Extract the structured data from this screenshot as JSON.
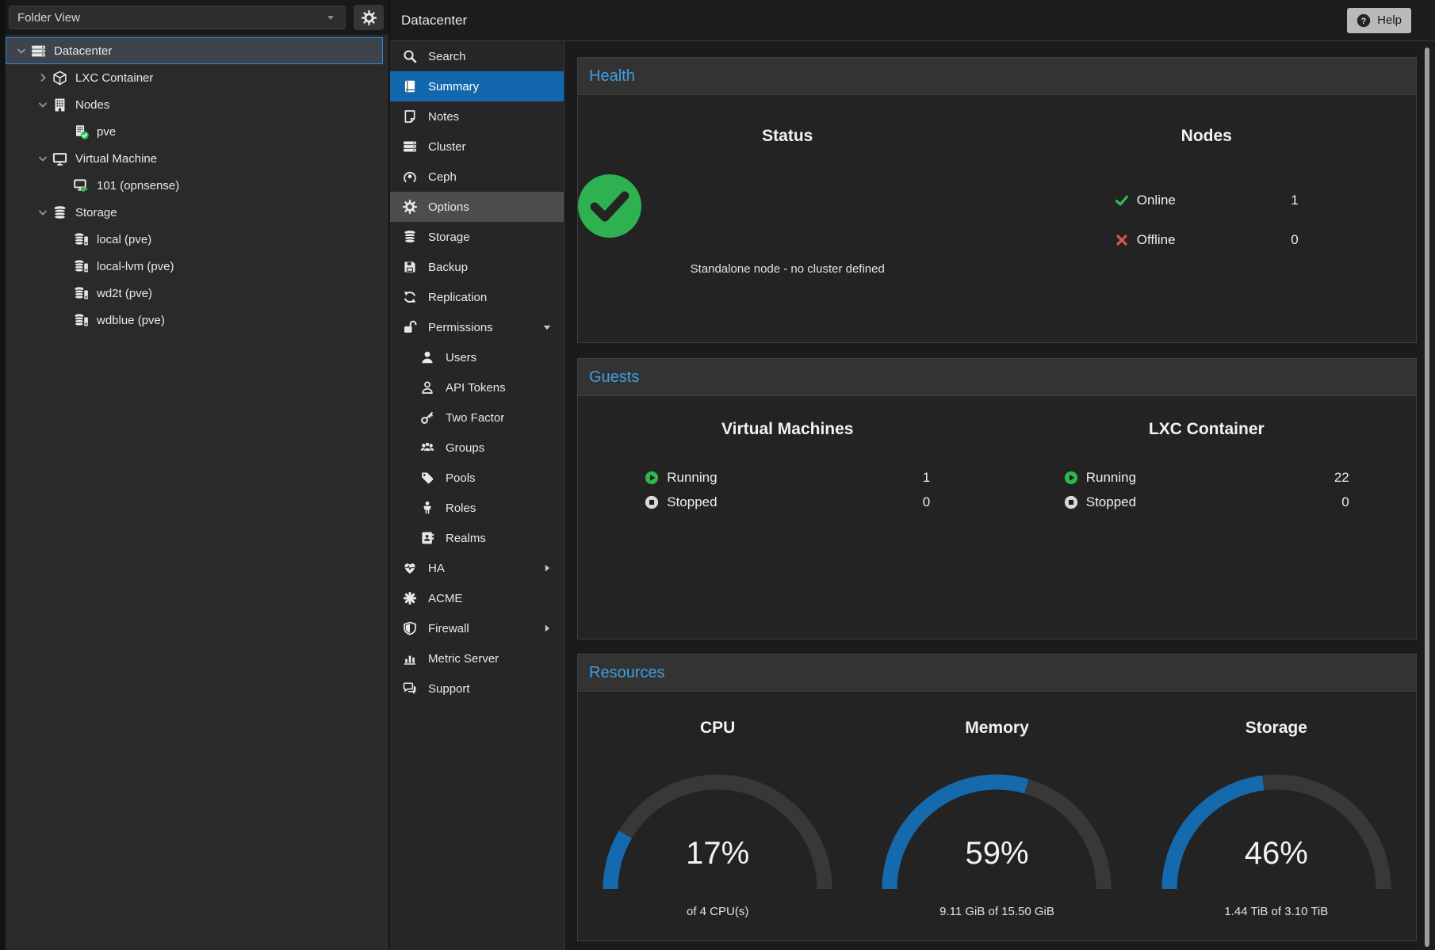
{
  "window": {
    "help_label": "Help"
  },
  "colors": {
    "selection_blue": "#1368ad",
    "panel_title_blue": "#3f9ee0",
    "success_green": "#2eb150",
    "error_red": "#e5534f",
    "gauge_blue": "#1569ad",
    "gauge_track": "#383838"
  },
  "sidebar": {
    "view_selector": "Folder View",
    "tree": [
      {
        "label": "Datacenter",
        "icon": "server",
        "level": 0,
        "expander": "down",
        "selected": true
      },
      {
        "label": "LXC Container",
        "icon": "cube",
        "level": 1,
        "expander": "right"
      },
      {
        "label": "Nodes",
        "icon": "building",
        "level": 1,
        "expander": "down"
      },
      {
        "label": "pve",
        "icon": "building-online",
        "level": 2,
        "expander": "none"
      },
      {
        "label": "Virtual Machine",
        "icon": "desktop",
        "level": 1,
        "expander": "down"
      },
      {
        "label": "101 (opnsense)",
        "icon": "desktop-running",
        "level": 2,
        "expander": "none"
      },
      {
        "label": "Storage",
        "icon": "database",
        "level": 1,
        "expander": "down"
      },
      {
        "label": "local (pve)",
        "icon": "database-drive",
        "level": 2,
        "expander": "none"
      },
      {
        "label": "local-lvm (pve)",
        "icon": "database-drive",
        "level": 2,
        "expander": "none"
      },
      {
        "label": "wd2t (pve)",
        "icon": "database-drive",
        "level": 2,
        "expander": "none"
      },
      {
        "label": "wdblue (pve)",
        "icon": "database-drive",
        "level": 2,
        "expander": "none"
      }
    ]
  },
  "menu": {
    "items": [
      {
        "label": "Search",
        "icon": "search"
      },
      {
        "label": "Summary",
        "icon": "book",
        "selected": true
      },
      {
        "label": "Notes",
        "icon": "note"
      },
      {
        "label": "Cluster",
        "icon": "server"
      },
      {
        "label": "Ceph",
        "icon": "ceph"
      },
      {
        "label": "Options",
        "icon": "gear",
        "hover": true
      },
      {
        "label": "Storage",
        "icon": "database"
      },
      {
        "label": "Backup",
        "icon": "floppy"
      },
      {
        "label": "Replication",
        "icon": "replication"
      },
      {
        "label": "Permissions",
        "icon": "unlock",
        "caret": "down"
      },
      {
        "label": "Users",
        "icon": "user",
        "sub": true
      },
      {
        "label": "API Tokens",
        "icon": "user-outline",
        "sub": true
      },
      {
        "label": "Two Factor",
        "icon": "key",
        "sub": true
      },
      {
        "label": "Groups",
        "icon": "users",
        "sub": true
      },
      {
        "label": "Pools",
        "icon": "tag",
        "sub": true
      },
      {
        "label": "Roles",
        "icon": "person",
        "sub": true
      },
      {
        "label": "Realms",
        "icon": "address-book",
        "sub": true
      },
      {
        "label": "HA",
        "icon": "heartbeat",
        "caret": "right"
      },
      {
        "label": "ACME",
        "icon": "acme"
      },
      {
        "label": "Firewall",
        "icon": "shield",
        "caret": "right"
      },
      {
        "label": "Metric Server",
        "icon": "bar-chart"
      },
      {
        "label": "Support",
        "icon": "comments"
      }
    ]
  },
  "main": {
    "title": "Datacenter",
    "health": {
      "title": "Health",
      "status": {
        "heading": "Status",
        "message": "Standalone node - no cluster defined"
      },
      "nodes": {
        "heading": "Nodes",
        "rows": [
          {
            "label": "Online",
            "value": "1",
            "icon": "check"
          },
          {
            "label": "Offline",
            "value": "0",
            "icon": "cross"
          }
        ]
      }
    },
    "guests": {
      "title": "Guests",
      "columns": [
        {
          "heading": "Virtual Machines",
          "rows": [
            {
              "label": "Running",
              "value": "1",
              "icon": "running"
            },
            {
              "label": "Stopped",
              "value": "0",
              "icon": "stopped"
            }
          ]
        },
        {
          "heading": "LXC Container",
          "rows": [
            {
              "label": "Running",
              "value": "22",
              "icon": "running"
            },
            {
              "label": "Stopped",
              "value": "0",
              "icon": "stopped"
            }
          ]
        }
      ]
    },
    "resources": {
      "title": "Resources",
      "gauges": [
        {
          "heading": "CPU",
          "percent": 17,
          "percent_label": "17%",
          "sub": "of 4 CPU(s)"
        },
        {
          "heading": "Memory",
          "percent": 59,
          "percent_label": "59%",
          "sub": "9.11 GiB of 15.50 GiB"
        },
        {
          "heading": "Storage",
          "percent": 46,
          "percent_label": "46%",
          "sub": "1.44 TiB of 3.10 TiB"
        }
      ]
    }
  }
}
